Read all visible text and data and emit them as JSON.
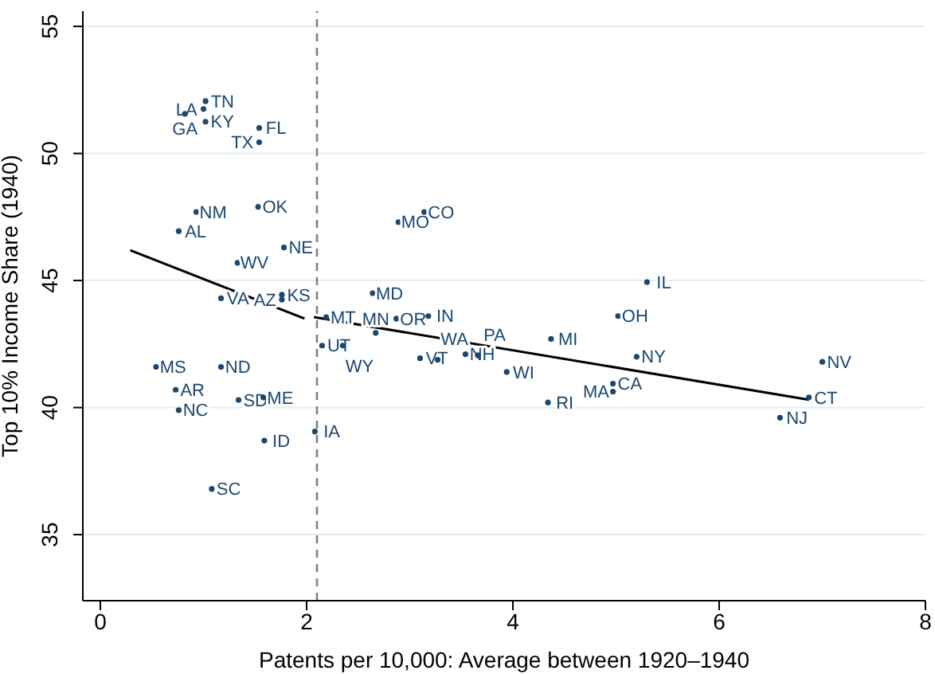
{
  "chart_data": {
    "type": "scatter",
    "xlabel": "Patents per 10,000: Average between 1920–1940",
    "ylabel": "Top 10% Income Share (1940)",
    "xlim": [
      -0.17,
      8
    ],
    "xticks": [
      0,
      2,
      4,
      6,
      8
    ],
    "ylim": [
      32.4,
      55.6
    ],
    "yticks": [
      35,
      40,
      45,
      50,
      55
    ],
    "grid": "y",
    "ref_lines": [
      {
        "axis": "x",
        "value": 2.1,
        "color": "#808080",
        "line_style": "dashed"
      }
    ],
    "series": [
      {
        "marker": "circle",
        "color": "#1a476f",
        "x": [
          1.02,
          1.0,
          0.82,
          1.02,
          1.54,
          1.54,
          0.93,
          1.53,
          0.76,
          1.78,
          1.33,
          1.17,
          1.76,
          1.76,
          2.89,
          3.14,
          2.64,
          2.19,
          2.87,
          3.18,
          2.67,
          2.15,
          2.35,
          3.1,
          3.27,
          3.54,
          3.66,
          3.94,
          4.37,
          4.34,
          5.02,
          5.3,
          5.2,
          4.97,
          4.97,
          7.0,
          6.87,
          6.59,
          0.54,
          1.17,
          0.73,
          0.76,
          1.34,
          1.58,
          1.59,
          2.08,
          1.08
        ],
        "values": [
          52.06,
          51.75,
          51.56,
          51.25,
          51.0,
          50.44,
          47.7,
          47.9,
          46.94,
          46.3,
          45.7,
          44.3,
          44.44,
          44.25,
          47.3,
          47.7,
          44.5,
          43.56,
          43.5,
          43.6,
          42.94,
          42.44,
          42.44,
          41.94,
          41.88,
          42.1,
          42.06,
          41.4,
          42.7,
          40.2,
          43.6,
          44.94,
          42.0,
          40.94,
          40.63,
          41.8,
          40.4,
          39.6,
          41.6,
          41.6,
          40.7,
          39.9,
          40.3,
          40.4,
          38.7,
          39.06,
          36.8
        ],
        "value_labels": [
          "TN",
          "LA",
          "GA",
          "KY",
          "FL",
          "TX",
          "NM",
          "OK",
          "AL",
          "NE",
          "WV",
          "VA",
          "KS",
          "AZ",
          "MO",
          "CO",
          "MD",
          "MT",
          "OR",
          "IN",
          "MN",
          "UT",
          "WY",
          "VT",
          "WA",
          "NH",
          "PA",
          "WI",
          "MI",
          "RI",
          "OH",
          "IL",
          "NY",
          "CA",
          "MA",
          "NV",
          "CT",
          "NJ",
          "MS",
          "ND",
          "AR",
          "NC",
          "SD",
          "ME",
          "ID",
          "IA",
          "SC"
        ]
      },
      {
        "type": "line",
        "color": "#000000",
        "x": [
          0.29,
          1.98
        ],
        "values": [
          46.19,
          43.5
        ]
      },
      {
        "type": "line",
        "color": "#000000",
        "x": [
          2.07,
          6.87
        ],
        "values": [
          43.56,
          40.31
        ]
      }
    ]
  }
}
